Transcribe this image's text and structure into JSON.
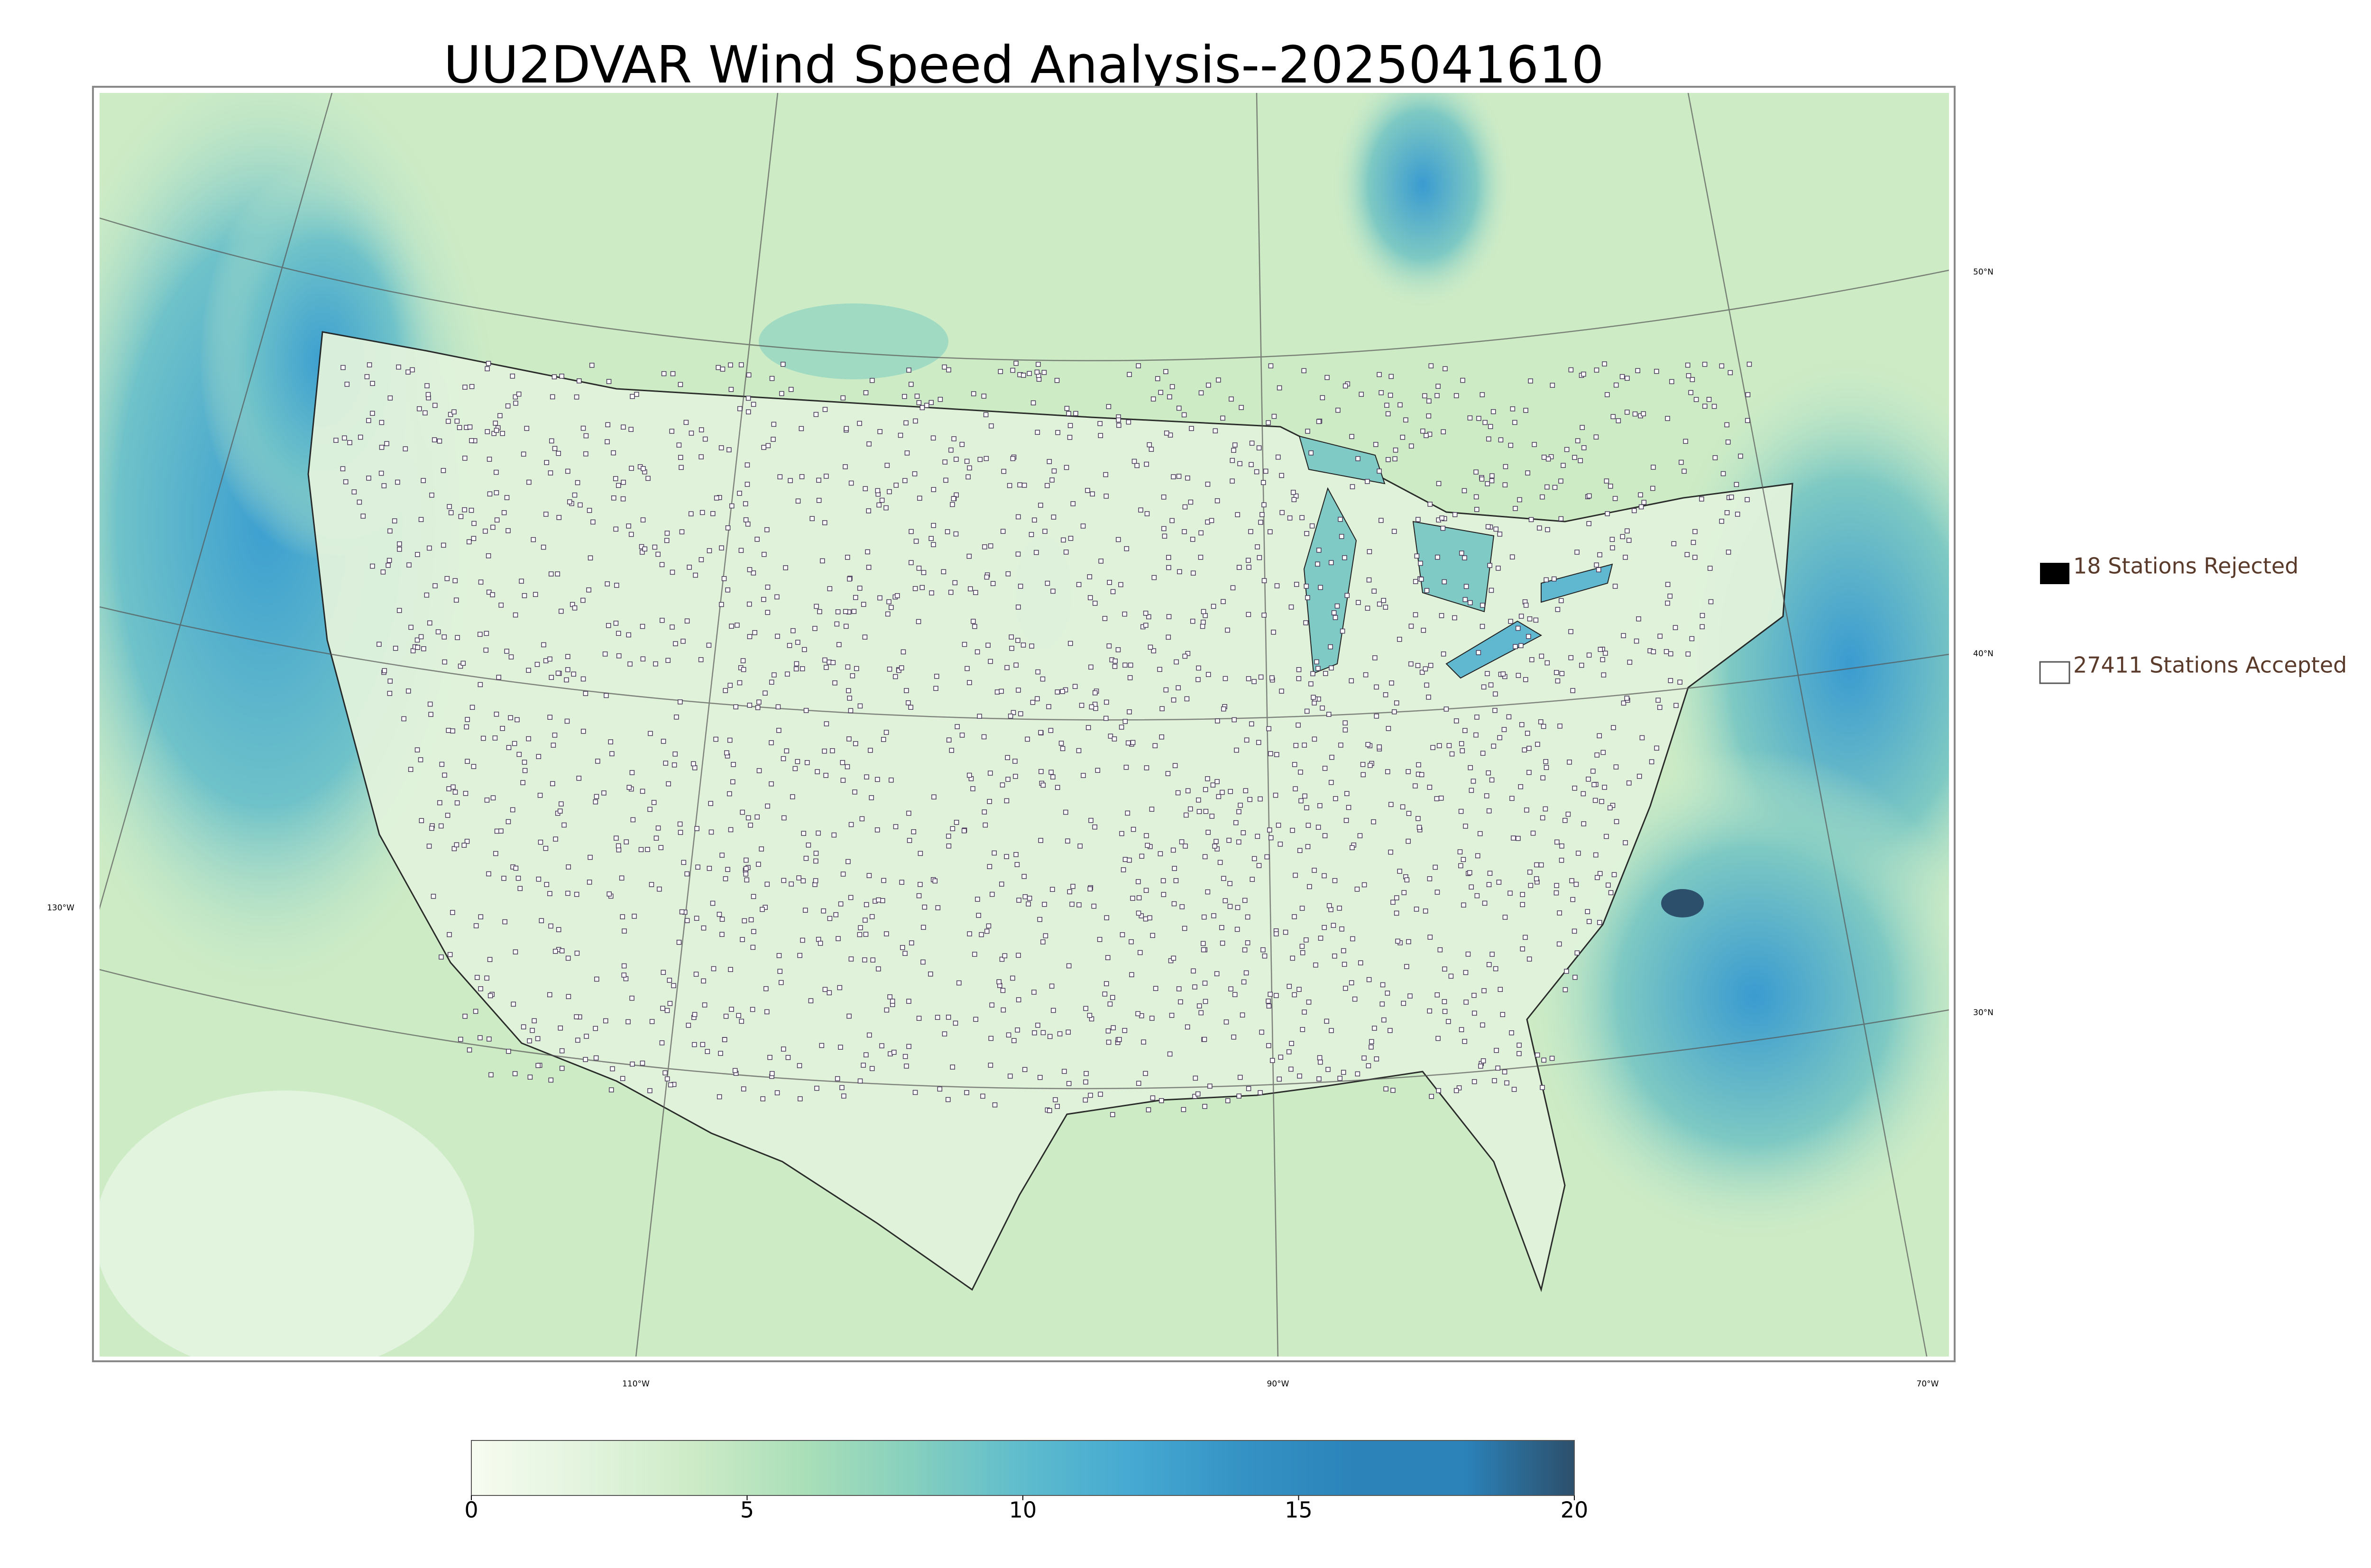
{
  "title": "UU2DVAR Wind Speed Analysis--2025041610",
  "legend": {
    "rejected": "18 Stations Rejected",
    "accepted": "27411 Stations Accepted"
  },
  "lat_labels": [
    "50°N",
    "40°N",
    "30°N"
  ],
  "lon_labels": [
    "130°W",
    "110°W",
    "90°W",
    "70°W"
  ],
  "colorbar": {
    "lim": [
      0,
      20
    ],
    "ticks": [
      0,
      5,
      10,
      15,
      20
    ],
    "colors": [
      "#f7fcf0",
      "#e3f4de",
      "#cdebc7",
      "#aadfb8",
      "#86d0be",
      "#5ebccd",
      "#45a9d2",
      "#3592c4",
      "#2b83ba",
      "#2b83ba",
      "#2c4f6b"
    ]
  }
}
